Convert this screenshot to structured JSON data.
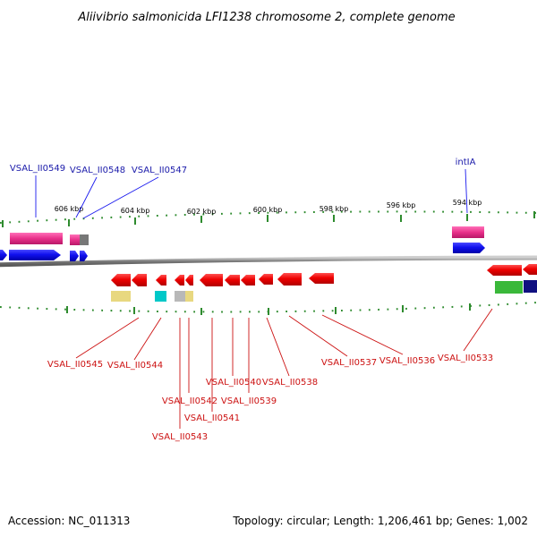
{
  "title": "Aliivibrio salmonicida LFI1238 chromosome 2, complete genome",
  "ruler": [
    "606 kbp",
    "604 kbp",
    "602 kbp",
    "600 kbp",
    "598 kbp",
    "596 kbp",
    "594 kbp"
  ],
  "genes_top": [
    "VSAL_II0549",
    "VSAL_II0548",
    "VSAL_II0547",
    "intIA"
  ],
  "genes_bottom": [
    "VSAL_II0545",
    "VSAL_II0544",
    "VSAL_II0543",
    "VSAL_II0542",
    "VSAL_II0541",
    "VSAL_II0540",
    "VSAL_II0539",
    "VSAL_II0538",
    "VSAL_II0537",
    "VSAL_II0536",
    "VSAL_II0533"
  ],
  "footer": {
    "accession": "Accession: NC_011313",
    "summary": "Topology: circular; Length: 1,206,461 bp; Genes: 1,002"
  },
  "colors": {
    "backbone": "#8a8a8a",
    "tick": "#2e8b2e",
    "cds": "#ee0000",
    "rna": "#1a1aee",
    "magenta": "#e8308a",
    "yellow": "#e8d880",
    "cyan": "#00c8c8",
    "gray": "#b8b8b8",
    "green": "#3ab83a",
    "navy": "#101080"
  }
}
